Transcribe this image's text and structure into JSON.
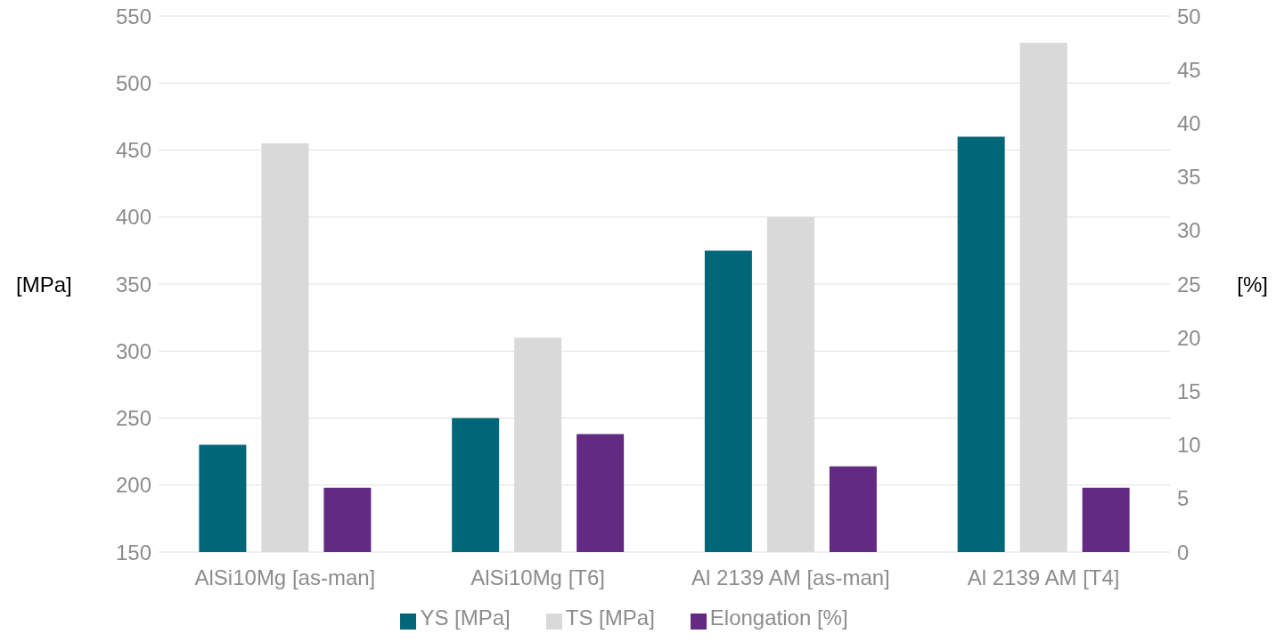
{
  "chart_data": {
    "type": "bar",
    "categories": [
      "AlSi10Mg [as-man]",
      "AlSi10Mg [T6]",
      "Al 2139 AM [as-man]",
      "Al 2139 AM [T4]"
    ],
    "series": [
      {
        "name": "YS [MPa]",
        "color": "#006778",
        "values": [
          230,
          250,
          375,
          460
        ]
      },
      {
        "name": "TS [MPa]",
        "color": "#d9d9d9",
        "values": [
          455,
          310,
          400,
          530
        ]
      },
      {
        "name": "Elongation [%]",
        "color": "#622a82",
        "values": [
          6,
          11,
          8,
          6
        ],
        "axis": "y2"
      }
    ],
    "ylabel": "[MPa]",
    "y2label": "[%]",
    "ylim": [
      150,
      550
    ],
    "yticks": [
      150,
      200,
      250,
      300,
      350,
      400,
      450,
      500,
      550
    ],
    "y2lim": [
      0,
      50
    ],
    "y2ticks": [
      0,
      5,
      10,
      15,
      20,
      25,
      30,
      35,
      40,
      45,
      50
    ],
    "grid": "y",
    "legend": "bottom"
  }
}
